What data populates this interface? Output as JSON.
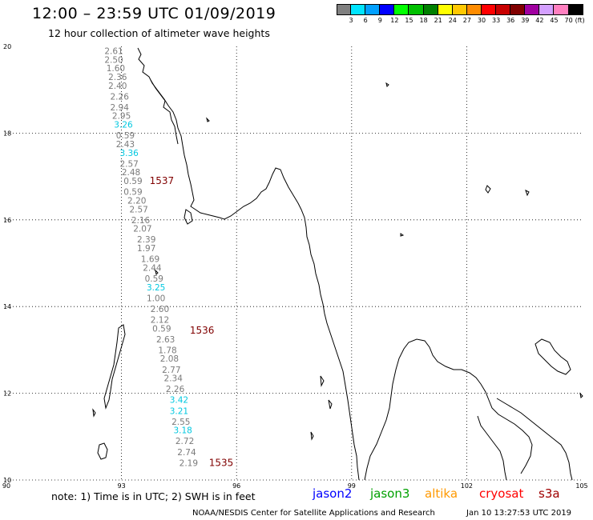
{
  "header": {
    "title": "12:00 – 23:59 UTC 01/09/2019",
    "subtitle": "12 hour collection of altimeter wave heights"
  },
  "legend": {
    "unit": "(ft)",
    "bins": [
      {
        "label": "3",
        "color": "#808080"
      },
      {
        "label": "6",
        "color": "#00e5ff"
      },
      {
        "label": "9",
        "color": "#00a0ff"
      },
      {
        "label": "12",
        "color": "#0000ff"
      },
      {
        "label": "15",
        "color": "#00ff00"
      },
      {
        "label": "18",
        "color": "#00c000"
      },
      {
        "label": "21",
        "color": "#008000"
      },
      {
        "label": "24",
        "color": "#ffff00"
      },
      {
        "label": "27",
        "color": "#ffc800"
      },
      {
        "label": "30",
        "color": "#ff8c00"
      },
      {
        "label": "33",
        "color": "#ff0000"
      },
      {
        "label": "36",
        "color": "#c80000"
      },
      {
        "label": "39",
        "color": "#800000"
      },
      {
        "label": "42",
        "color": "#a000a0"
      },
      {
        "label": "45",
        "color": "#d4a0ff"
      },
      {
        "label": "70",
        "color": "#ff80c0"
      },
      {
        "label": "",
        "color": "#000000"
      }
    ]
  },
  "axes": {
    "lon_ticks": [
      "90",
      "93",
      "96",
      "99",
      "102",
      "105"
    ],
    "lat_ticks": [
      "20",
      "18",
      "16",
      "14",
      "12",
      "10"
    ]
  },
  "colors": {
    "gray": "#7a7a7a",
    "cyan": "#00c8e0",
    "time_label": "#800000"
  },
  "track": {
    "points": [
      {
        "lat": 19.9,
        "lon": 92.8,
        "v": "2.61",
        "c": "gray"
      },
      {
        "lat": 19.7,
        "lon": 92.8,
        "v": "2.50",
        "c": "gray"
      },
      {
        "lat": 19.5,
        "lon": 92.85,
        "v": "1.60",
        "c": "gray"
      },
      {
        "lat": 19.3,
        "lon": 92.9,
        "v": "2.36",
        "c": "gray"
      },
      {
        "lat": 19.1,
        "lon": 92.9,
        "v": "2.40",
        "c": "gray"
      },
      {
        "lat": 18.85,
        "lon": 92.95,
        "v": "2.26",
        "c": "gray"
      },
      {
        "lat": 18.6,
        "lon": 92.95,
        "v": "2.94",
        "c": "gray"
      },
      {
        "lat": 18.4,
        "lon": 93.0,
        "v": "2.95",
        "c": "gray"
      },
      {
        "lat": 18.2,
        "lon": 93.05,
        "v": "3.26",
        "c": "cyan"
      },
      {
        "lat": 17.95,
        "lon": 93.1,
        "v": "0.59",
        "c": "gray"
      },
      {
        "lat": 17.75,
        "lon": 93.1,
        "v": "2.43",
        "c": "gray"
      },
      {
        "lat": 17.55,
        "lon": 93.2,
        "v": "3.36",
        "c": "cyan"
      },
      {
        "lat": 17.3,
        "lon": 93.2,
        "v": "2.57",
        "c": "gray"
      },
      {
        "lat": 17.1,
        "lon": 93.25,
        "v": "2.48",
        "c": "gray"
      },
      {
        "lat": 16.9,
        "lon": 93.3,
        "v": "0.59",
        "c": "gray"
      },
      {
        "lat": 16.65,
        "lon": 93.3,
        "v": "0.59",
        "c": "gray"
      },
      {
        "lat": 16.45,
        "lon": 93.4,
        "v": "2.20",
        "c": "gray"
      },
      {
        "lat": 16.25,
        "lon": 93.45,
        "v": "2.57",
        "c": "gray"
      },
      {
        "lat": 16.0,
        "lon": 93.5,
        "v": "2.16",
        "c": "gray"
      },
      {
        "lat": 15.8,
        "lon": 93.55,
        "v": "2.07",
        "c": "gray"
      },
      {
        "lat": 15.55,
        "lon": 93.65,
        "v": "2.39",
        "c": "gray"
      },
      {
        "lat": 15.35,
        "lon": 93.65,
        "v": "1.97",
        "c": "gray"
      },
      {
        "lat": 15.1,
        "lon": 93.75,
        "v": "1.69",
        "c": "gray"
      },
      {
        "lat": 14.9,
        "lon": 93.8,
        "v": "2.44",
        "c": "gray"
      },
      {
        "lat": 14.65,
        "lon": 93.85,
        "v": "0.59",
        "c": "gray"
      },
      {
        "lat": 14.45,
        "lon": 93.9,
        "v": "3.25",
        "c": "cyan"
      },
      {
        "lat": 14.2,
        "lon": 93.9,
        "v": "1.00",
        "c": "gray"
      },
      {
        "lat": 13.95,
        "lon": 94.0,
        "v": "2.60",
        "c": "gray"
      },
      {
        "lat": 13.7,
        "lon": 94.0,
        "v": "2.12",
        "c": "gray"
      },
      {
        "lat": 13.5,
        "lon": 94.05,
        "v": "0.59",
        "c": "gray"
      },
      {
        "lat": 13.25,
        "lon": 94.15,
        "v": "2.63",
        "c": "gray"
      },
      {
        "lat": 13.0,
        "lon": 94.2,
        "v": "1.78",
        "c": "gray"
      },
      {
        "lat": 12.8,
        "lon": 94.25,
        "v": "2.08",
        "c": "gray"
      },
      {
        "lat": 12.55,
        "lon": 94.3,
        "v": "2.77",
        "c": "gray"
      },
      {
        "lat": 12.35,
        "lon": 94.35,
        "v": "2.34",
        "c": "gray"
      },
      {
        "lat": 12.1,
        "lon": 94.4,
        "v": "2.26",
        "c": "gray"
      },
      {
        "lat": 11.85,
        "lon": 94.5,
        "v": "3.42",
        "c": "cyan"
      },
      {
        "lat": 11.6,
        "lon": 94.5,
        "v": "3.21",
        "c": "cyan"
      },
      {
        "lat": 11.35,
        "lon": 94.55,
        "v": "2.55",
        "c": "gray"
      },
      {
        "lat": 11.15,
        "lon": 94.6,
        "v": "3.18",
        "c": "cyan"
      },
      {
        "lat": 10.9,
        "lon": 94.65,
        "v": "2.72",
        "c": "gray"
      },
      {
        "lat": 10.65,
        "lon": 94.7,
        "v": "2.74",
        "c": "gray"
      },
      {
        "lat": 10.4,
        "lon": 94.75,
        "v": "2.19",
        "c": "gray"
      }
    ],
    "time_labels": [
      {
        "lat": 16.9,
        "lon": 94.05,
        "t": "1537"
      },
      {
        "lat": 13.45,
        "lon": 95.1,
        "t": "1536"
      },
      {
        "lat": 10.4,
        "lon": 95.6,
        "t": "1535"
      }
    ]
  },
  "footer": {
    "note": "note: 1) Time is in UTC; 2) SWH is in feet",
    "satellites": [
      {
        "name": "jason2",
        "color": "#0000ff"
      },
      {
        "name": "jason3",
        "color": "#00a000"
      },
      {
        "name": "altika",
        "color": "#ff9900"
      },
      {
        "name": "cryosat",
        "color": "#ff0000"
      },
      {
        "name": "s3a",
        "color": "#a00000"
      }
    ],
    "credit": "NOAA/NESDIS Center for Satellite Applications and Research",
    "timestamp": "Jan 10 13:27:53 UTC 2019"
  }
}
